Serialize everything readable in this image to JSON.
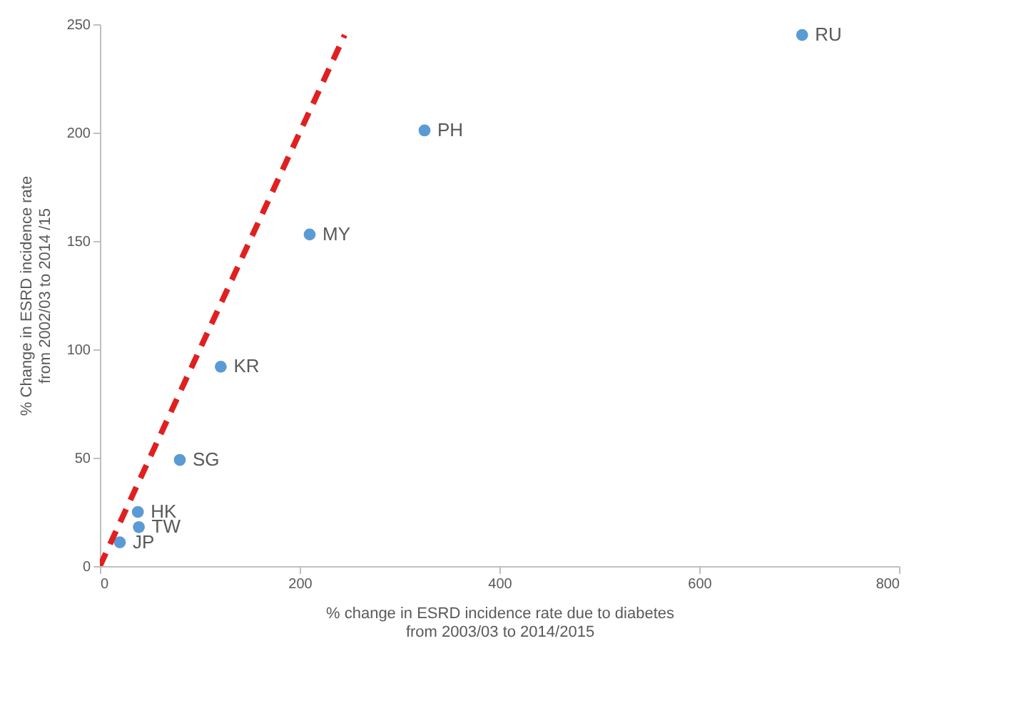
{
  "chart_data": {
    "type": "scatter",
    "xlabel": "% change in ESRD incidence rate due to diabetes\nfrom 2003/03 to 2014/2015",
    "ylabel": "% Change in ESRD incidence rate\nfrom 2002/03 to 2014 /15",
    "series": [
      {
        "color": "#5b9bd5",
        "marker": "circle",
        "x": [
          20,
          38,
          39,
          80,
          121,
          210,
          325,
          703
        ],
        "values": [
          11,
          25,
          18,
          49,
          92,
          153,
          201,
          245
        ]
      },
      {
        "type": "line",
        "color": "#e02020",
        "line_style": "dashed",
        "x": [
          0,
          245
        ],
        "values": [
          0,
          245
        ]
      }
    ],
    "annotations": [
      {
        "text": "JP",
        "x": 20,
        "y": 11
      },
      {
        "text": "HK",
        "x": 38,
        "y": 25
      },
      {
        "text": "TW",
        "x": 39,
        "y": 18
      },
      {
        "text": "SG",
        "x": 80,
        "y": 49
      },
      {
        "text": "KR",
        "x": 121,
        "y": 92
      },
      {
        "text": "MY",
        "x": 210,
        "y": 153
      },
      {
        "text": "PH",
        "x": 325,
        "y": 201
      },
      {
        "text": "RU",
        "x": 703,
        "y": 245
      }
    ],
    "xlim": [
      0,
      800
    ],
    "xticks": [
      0,
      200,
      400,
      600,
      800
    ],
    "ylim": [
      0,
      250
    ],
    "yticks": [
      0,
      50,
      100,
      150,
      200,
      250
    ],
    "grid": false
  }
}
